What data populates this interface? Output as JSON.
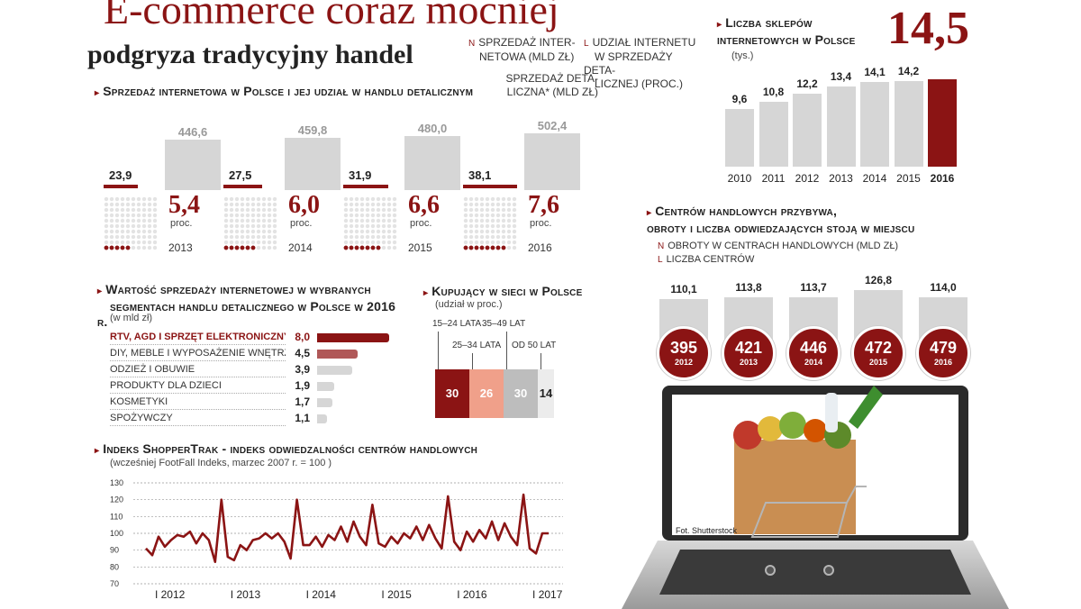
{
  "title": "E-commerce coraz mocniej",
  "subtitle": "podgryza tradycyjny handel",
  "legend_top": {
    "a": "SPRZEDAŻ INTER-NETOWA (mld zł)",
    "a1": "SPRZEDAŻ INTER-",
    "a2": "NETOWA (mld zł)",
    "b1": "SPRZEDAŻ DETA-",
    "b2": "LICZNA* (mld zł)",
    "c1": "UDZIAŁ INTERNETU",
    "c2": "W SPRZEDAŻY DETA-",
    "c3": "LICZNEJ (proc.)",
    "marker_n": "n",
    "marker_l": "l"
  },
  "colors": {
    "accent": "#8b1414",
    "gray": "#d6d6d6",
    "salmon": "#f0a08a",
    "lightgray": "#ececec"
  },
  "chart_data": [
    {
      "type": "bar",
      "title": "Sprzedaż internetowa w Polsce i jej udział w handlu detalicznym",
      "categories": [
        "2013",
        "2014",
        "2015",
        "2016"
      ],
      "series": [
        {
          "name": "SPRZEDAŻ INTERNETOWA (mld zł)",
          "values": [
            23.9,
            27.5,
            31.9,
            38.1
          ]
        },
        {
          "name": "SPRZEDAŻ DETALICZNA* (mld zł)",
          "values": [
            446.6,
            459.8,
            480.0,
            502.4
          ]
        },
        {
          "name": "UDZIAŁ INTERNETU W SPRZEDAŻY DETALICZNEJ (proc.)",
          "values": [
            5.4,
            6.0,
            6.6,
            7.6
          ]
        }
      ],
      "labels_internet": [
        "23,9",
        "27,5",
        "31,9",
        "38,1"
      ],
      "labels_retail": [
        "446,6",
        "459,8",
        "480,0",
        "502,4"
      ],
      "labels_share": [
        "5,4",
        "6,0",
        "6,6",
        "7,6"
      ],
      "share_unit": "proc."
    },
    {
      "type": "bar",
      "title": "Liczba sklepów internetowych w Polsce",
      "unit": "(tys.)",
      "categories": [
        "2010",
        "2011",
        "2012",
        "2013",
        "2014",
        "2015",
        "2016"
      ],
      "values": [
        9.6,
        10.8,
        12.2,
        13.4,
        14.1,
        14.2,
        14.5
      ],
      "labels": [
        "9,6",
        "10,8",
        "12,2",
        "13,4",
        "14,1",
        "14,2",
        "14,5"
      ],
      "ylim": [
        0,
        15
      ]
    },
    {
      "type": "bar",
      "title1": "Centrów handlowych przybywa,",
      "title2": "obroty i liczba odwiedzających stoją w miejscu",
      "legend1": "OBROTY W CENTRACH HANDLOWYCH (mld zł)",
      "legend2": "LICZBA CENTRÓW",
      "categories": [
        "2012",
        "2013",
        "2014",
        "2015",
        "2016"
      ],
      "series": [
        {
          "name": "OBROTY W CENTRACH HANDLOWYCH (mld zł)",
          "values": [
            110.1,
            113.8,
            113.7,
            126.8,
            114.0
          ]
        },
        {
          "name": "LICZBA CENTRÓW",
          "values": [
            395,
            421,
            446,
            472,
            479
          ]
        }
      ],
      "labels_turnover": [
        "110,1",
        "113,8",
        "113,7",
        "126,8",
        "114,0"
      ]
    },
    {
      "type": "bar",
      "title1": "Wartość sprzedaży internetowej w wybranych",
      "title2": "segmentach handlu detalicznego w Polsce w 2016 r.",
      "unit": "(w mld zł)",
      "categories": [
        "RTV, AGD I SPRZĘT ELEKTRONICZNY",
        "DIY, MEBLE I WYPOSAŻENIE WNĘTRZ",
        "ODZIEŻ I OBUWIE",
        "PRODUKTY DLA DZIECI",
        "KOSMETYKI",
        "SPOŻYWCZY"
      ],
      "values": [
        8.0,
        4.5,
        3.9,
        1.9,
        1.7,
        1.1
      ],
      "labels": [
        "8,0",
        "4,5",
        "3,9",
        "1,9",
        "1,7",
        "1,1"
      ],
      "xlim": [
        0,
        8
      ]
    },
    {
      "type": "bar",
      "title": "Kupujący w sieci w Polsce",
      "unit": "(udział w proc.)",
      "categories": [
        "15–24 LATA",
        "25–34 LATA",
        "35–49 LAT",
        "OD 50 LAT"
      ],
      "values": [
        30,
        26,
        30,
        14
      ]
    },
    {
      "type": "line",
      "title": "Indeks ShopperTrak - indeks odwiedzalności centrów handlowych",
      "subtitle": "(wcześniej FootFall Indeks, marzec 2007 r. = 100 )",
      "yticks": [
        "130",
        "120",
        "110",
        "100",
        "90",
        "80",
        "70"
      ],
      "ylim": [
        70,
        130
      ],
      "xticks": [
        "I 2012",
        "I 2013",
        "I 2014",
        "I 2015",
        "I 2016",
        "I 2017"
      ],
      "x_start_year": 2011.83,
      "values": [
        91,
        87,
        98,
        92,
        96,
        99,
        98,
        101,
        94,
        100,
        96,
        83,
        120,
        86,
        84,
        93,
        90,
        96,
        97,
        100,
        97,
        100,
        95,
        85,
        120,
        93,
        93,
        98,
        92,
        99,
        96,
        104,
        95,
        107,
        98,
        93,
        117,
        94,
        92,
        98,
        94,
        100,
        97,
        104,
        96,
        105,
        97,
        91,
        122,
        95,
        90,
        101,
        95,
        102,
        97,
        107,
        96,
        106,
        98,
        93,
        123,
        91,
        88,
        100,
        100
      ],
      "x_values_note": ""
    }
  ],
  "photo_credit": "Fot. Shutterstock"
}
